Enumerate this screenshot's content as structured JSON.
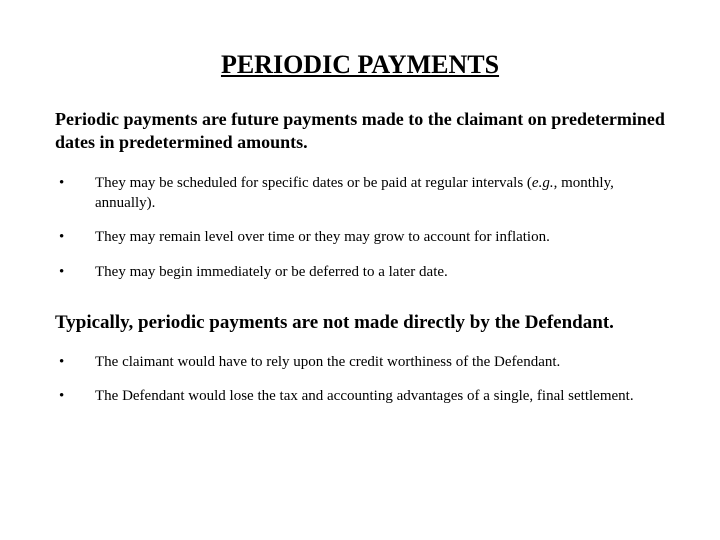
{
  "title": "PERIODIC PAYMENTS",
  "intro": "Periodic payments are future payments made to the claimant on predetermined dates in predetermined amounts.",
  "list1": {
    "items": [
      {
        "pre": "They may be scheduled for specific dates or be paid at regular intervals (",
        "em": "e.g.",
        "post": ", monthly, annually)."
      },
      {
        "text": "They may remain level over time or they may grow to account for inflation."
      },
      {
        "text": "They may begin immediately or be deferred to a later date."
      }
    ]
  },
  "subhead": "Typically, periodic payments are not made directly by the Defendant.",
  "list2": {
    "items": [
      {
        "text": "The claimant would have to rely upon the credit worthiness of the Defendant."
      },
      {
        "text": "The Defendant would lose the tax and accounting advantages of a single, final settlement."
      }
    ]
  },
  "style": {
    "background": "#ffffff",
    "text_color": "#000000",
    "title_fontsize": 26,
    "intro_fontsize": 18,
    "body_fontsize": 15,
    "subhead_fontsize": 19,
    "font_family": "Times New Roman"
  }
}
